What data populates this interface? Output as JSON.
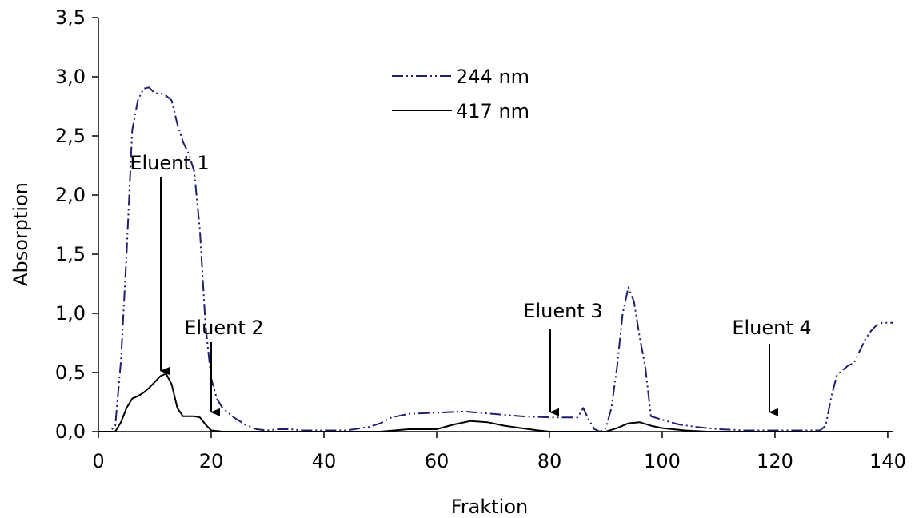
{
  "chart_data": {
    "type": "line",
    "title": "",
    "xlabel": "Fraktion",
    "ylabel": "Absorption",
    "xlim": [
      0,
      141
    ],
    "ylim": [
      0,
      3.5
    ],
    "x_ticks": [
      0,
      20,
      40,
      60,
      80,
      100,
      120,
      140
    ],
    "x_tick_labels": [
      "0",
      "20",
      "40",
      "60",
      "80",
      "100",
      "120",
      "140"
    ],
    "y_ticks": [
      0,
      0.5,
      1.0,
      1.5,
      2.0,
      2.5,
      3.0,
      3.5
    ],
    "y_tick_labels": [
      "0,0",
      "0,5",
      "1,0",
      "1,5",
      "2,0",
      "2,5",
      "3,0",
      "3,5"
    ],
    "grid": false,
    "legend_position": "top-center",
    "series": [
      {
        "name": "244 nm",
        "color": "#1f1f6e",
        "line_style": "dash-dot-dot",
        "points": [
          [
            0,
            0
          ],
          [
            2,
            0
          ],
          [
            3,
            0.05
          ],
          [
            4,
            0.6
          ],
          [
            5,
            1.5
          ],
          [
            6,
            2.55
          ],
          [
            7,
            2.8
          ],
          [
            8,
            2.9
          ],
          [
            9,
            2.91
          ],
          [
            10,
            2.86
          ],
          [
            11,
            2.86
          ],
          [
            12,
            2.84
          ],
          [
            13,
            2.8
          ],
          [
            14,
            2.6
          ],
          [
            15,
            2.45
          ],
          [
            16,
            2.35
          ],
          [
            17,
            2.2
          ],
          [
            18,
            1.7
          ],
          [
            19,
            0.9
          ],
          [
            20,
            0.45
          ],
          [
            21,
            0.28
          ],
          [
            22,
            0.2
          ],
          [
            24,
            0.12
          ],
          [
            26,
            0.06
          ],
          [
            28,
            0.02
          ],
          [
            30,
            0.01
          ],
          [
            32,
            0.02
          ],
          [
            34,
            0.02
          ],
          [
            36,
            0.01
          ],
          [
            38,
            0.01
          ],
          [
            40,
            0.01
          ],
          [
            44,
            0.01
          ],
          [
            48,
            0.04
          ],
          [
            50,
            0.07
          ],
          [
            52,
            0.12
          ],
          [
            55,
            0.15
          ],
          [
            60,
            0.16
          ],
          [
            65,
            0.17
          ],
          [
            70,
            0.15
          ],
          [
            75,
            0.13
          ],
          [
            80,
            0.12
          ],
          [
            85,
            0.12
          ],
          [
            86,
            0.2
          ],
          [
            87,
            0.1
          ],
          [
            88,
            0.02
          ],
          [
            89,
            0.0
          ],
          [
            90,
            0.03
          ],
          [
            91,
            0.2
          ],
          [
            92,
            0.55
          ],
          [
            93,
            1.0
          ],
          [
            94,
            1.22
          ],
          [
            95,
            1.1
          ],
          [
            96,
            0.8
          ],
          [
            97,
            0.55
          ],
          [
            98,
            0.13
          ],
          [
            100,
            0.1
          ],
          [
            103,
            0.06
          ],
          [
            106,
            0.04
          ],
          [
            110,
            0.02
          ],
          [
            115,
            0.01
          ],
          [
            120,
            0.01
          ],
          [
            125,
            0.01
          ],
          [
            128,
            0.01
          ],
          [
            129,
            0.05
          ],
          [
            130,
            0.3
          ],
          [
            131,
            0.48
          ],
          [
            132,
            0.52
          ],
          [
            133,
            0.56
          ],
          [
            134,
            0.58
          ],
          [
            135,
            0.68
          ],
          [
            136,
            0.78
          ],
          [
            137,
            0.85
          ],
          [
            138,
            0.9
          ],
          [
            139,
            0.92
          ],
          [
            140,
            0.92
          ],
          [
            141,
            0.92
          ]
        ]
      },
      {
        "name": "417 nm",
        "color": "#000000",
        "line_style": "solid",
        "points": [
          [
            0,
            0
          ],
          [
            3,
            0.0
          ],
          [
            4,
            0.08
          ],
          [
            5,
            0.2
          ],
          [
            6,
            0.28
          ],
          [
            7,
            0.3
          ],
          [
            8,
            0.33
          ],
          [
            9,
            0.37
          ],
          [
            10,
            0.42
          ],
          [
            11,
            0.47
          ],
          [
            12,
            0.49
          ],
          [
            13,
            0.4
          ],
          [
            14,
            0.2
          ],
          [
            15,
            0.13
          ],
          [
            16,
            0.13
          ],
          [
            17,
            0.13
          ],
          [
            18,
            0.12
          ],
          [
            19,
            0.06
          ],
          [
            20,
            0.01
          ],
          [
            22,
            0.0
          ],
          [
            30,
            0.0
          ],
          [
            40,
            0.0
          ],
          [
            50,
            0.0
          ],
          [
            55,
            0.02
          ],
          [
            60,
            0.02
          ],
          [
            63,
            0.06
          ],
          [
            66,
            0.09
          ],
          [
            69,
            0.08
          ],
          [
            72,
            0.05
          ],
          [
            75,
            0.03
          ],
          [
            78,
            0.01
          ],
          [
            80,
            0.0
          ],
          [
            90,
            0.0
          ],
          [
            92,
            0.03
          ],
          [
            94,
            0.07
          ],
          [
            96,
            0.08
          ],
          [
            98,
            0.05
          ],
          [
            100,
            0.03
          ],
          [
            104,
            0.01
          ],
          [
            108,
            0.0
          ],
          [
            120,
            0.0
          ],
          [
            130,
            0.0
          ],
          [
            141,
            0.0
          ]
        ]
      }
    ],
    "annotations": [
      {
        "label": "Eluent 1",
        "x": 11,
        "y": 0.5
      },
      {
        "label": "Eluent 2",
        "x": 20,
        "y": 0.15
      },
      {
        "label": "Eluent 3",
        "x": 80.5,
        "y": 0.15
      },
      {
        "label": "Eluent 4",
        "x": 119,
        "y": 0.15
      }
    ]
  }
}
